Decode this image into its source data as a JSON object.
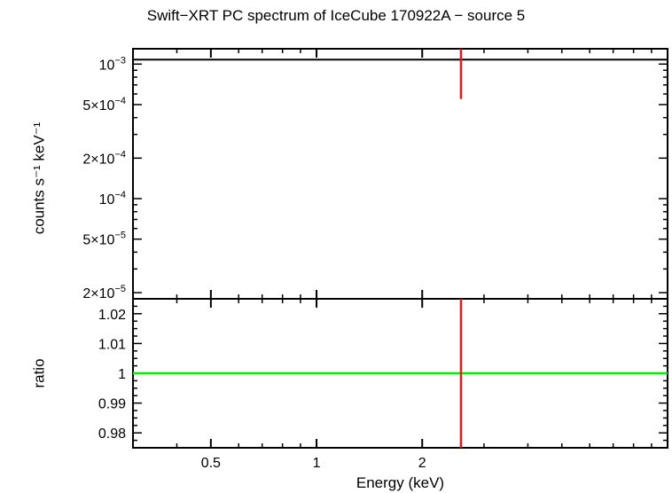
{
  "chart_data": [
    {
      "panel": "spectrum",
      "type": "scatter",
      "title": "Swift−XRT PC spectrum of IceCube 170922A − source 5",
      "xlabel": "Energy (keV)",
      "ylabel": "counts s⁻¹ keV⁻¹",
      "xscale": "log",
      "yscale": "log",
      "xlim": [
        0.3,
        10
      ],
      "ylim": [
        1.8e-05,
        0.0013
      ],
      "xticks": [
        {
          "value": 0.5,
          "label": "0.5"
        },
        {
          "value": 1,
          "label": "1"
        },
        {
          "value": 2,
          "label": "2"
        }
      ],
      "yticks": [
        {
          "value": 0.001,
          "mantissa": "",
          "exp": "−3"
        },
        {
          "value": 0.0005,
          "mantissa": "5×",
          "exp": "−4"
        },
        {
          "value": 0.0002,
          "mantissa": "2×",
          "exp": "−4"
        },
        {
          "value": 0.0001,
          "mantissa": "",
          "exp": "−4"
        },
        {
          "value": 5e-05,
          "mantissa": "5×",
          "exp": "−5"
        },
        {
          "value": 2e-05,
          "mantissa": "2×",
          "exp": "−5"
        }
      ],
      "series": [
        {
          "kind": "model",
          "color": "#000000",
          "x": [
            0.3,
            10
          ],
          "y": [
            0.00108,
            0.00108
          ]
        },
        {
          "kind": "data",
          "color": "#e41a1c",
          "points": [
            {
              "x": 2.58,
              "y": 0.00108,
              "ylow": 0.00055,
              "yhigh": 0.0013
            }
          ]
        }
      ]
    },
    {
      "panel": "ratio",
      "type": "scatter",
      "xlabel": "Energy (keV)",
      "ylabel": "ratio",
      "xscale": "log",
      "yscale": "linear",
      "xlim": [
        0.3,
        10
      ],
      "ylim": [
        0.975,
        1.025
      ],
      "yticks": [
        {
          "value": 1.02,
          "label": "1.02"
        },
        {
          "value": 1.01,
          "label": "1.01"
        },
        {
          "value": 1.0,
          "label": "1"
        },
        {
          "value": 0.99,
          "label": "0.99"
        },
        {
          "value": 0.98,
          "label": "0.98"
        }
      ],
      "series": [
        {
          "kind": "reference",
          "color": "#00ee00",
          "y": 1.0
        },
        {
          "kind": "data",
          "color": "#e41a1c",
          "points": [
            {
              "x": 2.58,
              "y": 1.0,
              "ylow": 0.975,
              "yhigh": 1.025
            }
          ]
        }
      ]
    }
  ]
}
